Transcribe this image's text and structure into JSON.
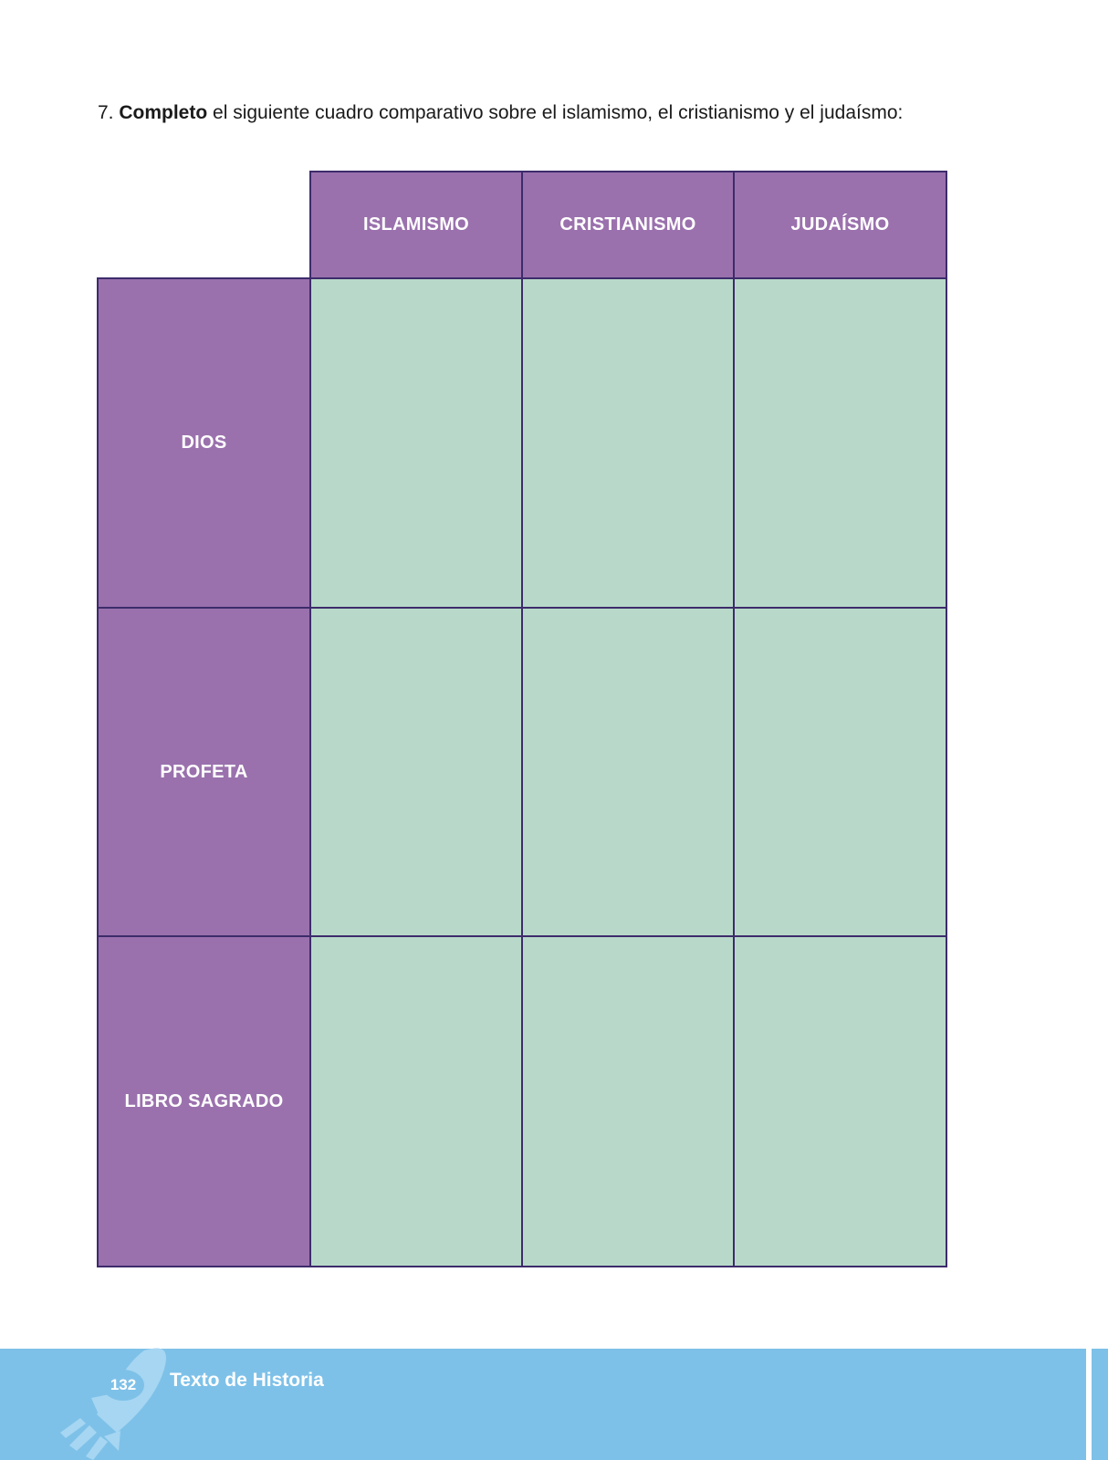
{
  "instruction": {
    "number": "7.",
    "verb": "Completo",
    "rest": "el siguiente cuadro comparativo sobre el islamismo, el cristianismo y el judaísmo:"
  },
  "table": {
    "columns": [
      "ISLAMISMO",
      "CRISTIANISMO",
      "JUDAÍSMO"
    ],
    "rows": [
      "DIOS",
      "PROFETA",
      "LIBRO SAGRADO"
    ]
  },
  "footer": {
    "page_number": "132",
    "book_title": "Texto de Historia"
  },
  "colors": {
    "header_purple": "#9a71ad",
    "cell_green": "#b8d9c9",
    "border": "#3d2b6b",
    "footer_blue": "#7ec1e8"
  }
}
